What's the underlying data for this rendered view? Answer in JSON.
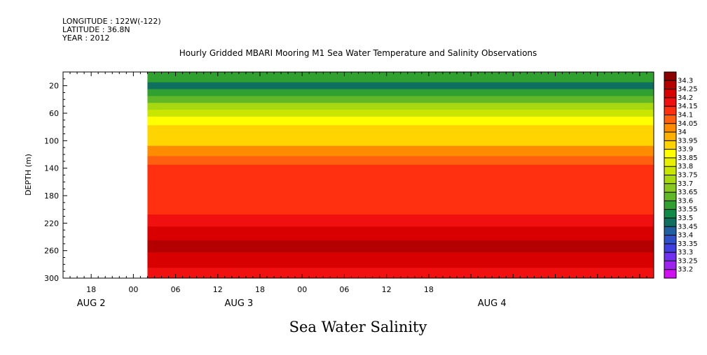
{
  "header": {
    "longitude": "LONGITUDE : 122W(-122)",
    "latitude": "LATITUDE : 36.8N",
    "year": "YEAR : 2012"
  },
  "chart_data": {
    "type": "heatmap",
    "title": "Hourly Gridded MBARI Mooring M1 Sea Water Temperature and Salinity Observations",
    "bottom_title": "Sea Water Salinity",
    "ylabel": "DEPTH (m)",
    "xlabel": "",
    "ylim": [
      300,
      0
    ],
    "y_ticks": [
      20,
      60,
      100,
      140,
      180,
      220,
      260,
      300
    ],
    "x_range_hours": [
      -10,
      74
    ],
    "x_data_start_hours": 2,
    "x_ticks": [
      {
        "h": -6,
        "label": "18"
      },
      {
        "h": 0,
        "label": "00"
      },
      {
        "h": 6,
        "label": "06"
      },
      {
        "h": 12,
        "label": "12"
      },
      {
        "h": 18,
        "label": "18"
      },
      {
        "h": 24,
        "label": "00"
      },
      {
        "h": 30,
        "label": "06"
      },
      {
        "h": 36,
        "label": "12"
      },
      {
        "h": 42,
        "label": "18"
      }
    ],
    "date_labels": [
      {
        "h": -6,
        "label": "AUG  2"
      },
      {
        "h": 15,
        "label": "AUG  3"
      },
      {
        "h": 51,
        "label": "AUG  4"
      }
    ],
    "colorbar": {
      "labels": [
        "34.3",
        "34.25",
        "34.2",
        "34.15",
        "34.1",
        "34.05",
        "34",
        "33.95",
        "33.9",
        "33.85",
        "33.8",
        "33.75",
        "33.7",
        "33.65",
        "33.6",
        "33.55",
        "33.5",
        "33.45",
        "33.4",
        "33.35",
        "33.3",
        "33.25",
        "33.2"
      ],
      "colors": [
        "#8b0000",
        "#b50000",
        "#d80000",
        "#f01010",
        "#ff3010",
        "#ff6010",
        "#ff8c00",
        "#ffb000",
        "#ffd400",
        "#ffff00",
        "#e6f000",
        "#c8e600",
        "#a8d810",
        "#88c820",
        "#60b828",
        "#30a030",
        "#108a48",
        "#107060",
        "#2060a0",
        "#3050c8",
        "#4040e0",
        "#7030f0",
        "#a020f0",
        "#d010f0"
      ]
    },
    "depth_profile": [
      {
        "depth": 10,
        "value": 33.55
      },
      {
        "depth": 20,
        "value": 33.45
      },
      {
        "depth": 30,
        "value": 33.55
      },
      {
        "depth": 40,
        "value": 33.6
      },
      {
        "depth": 50,
        "value": 33.7
      },
      {
        "depth": 60,
        "value": 33.78
      },
      {
        "depth": 70,
        "value": 33.85
      },
      {
        "depth": 85,
        "value": 33.9
      },
      {
        "depth": 100,
        "value": 33.93
      },
      {
        "depth": 115,
        "value": 34.0
      },
      {
        "depth": 130,
        "value": 34.05
      },
      {
        "depth": 140,
        "value": 34.1
      },
      {
        "depth": 200,
        "value": 34.12
      },
      {
        "depth": 215,
        "value": 34.15
      },
      {
        "depth": 235,
        "value": 34.22
      },
      {
        "depth": 255,
        "value": 34.28
      },
      {
        "depth": 270,
        "value": 34.22
      },
      {
        "depth": 300,
        "value": 34.18
      }
    ]
  }
}
